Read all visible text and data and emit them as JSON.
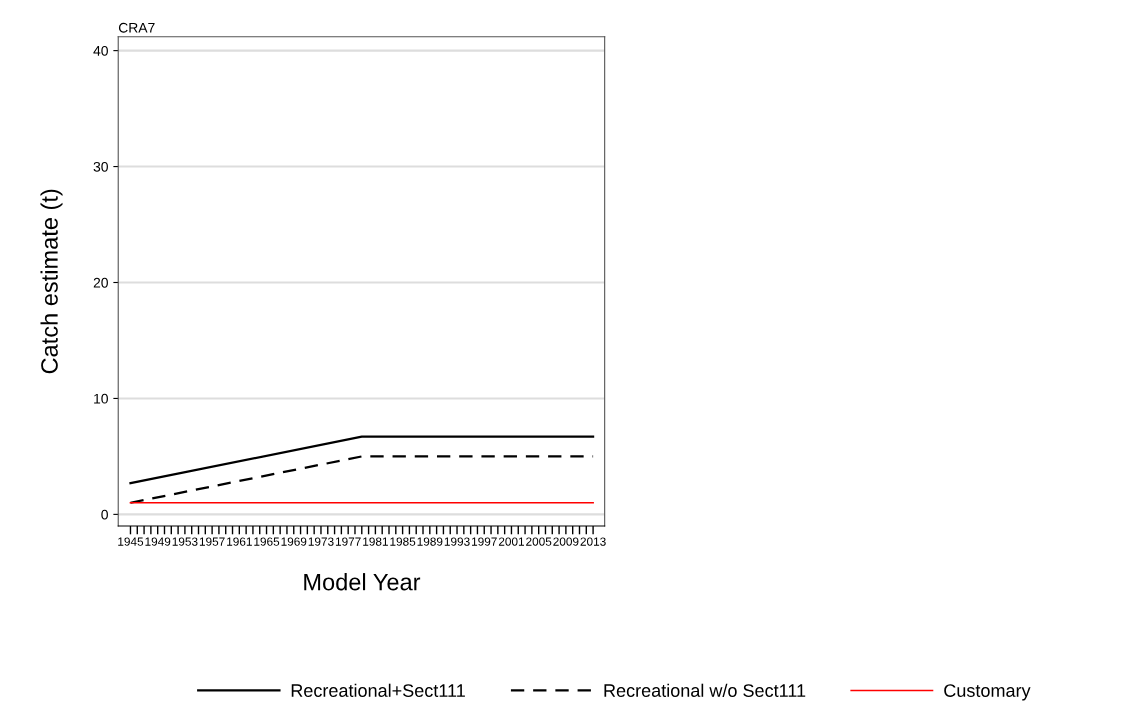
{
  "chart_data": {
    "type": "line",
    "title": "CRA7",
    "xlabel": "Model Year",
    "ylabel": "Catch estimate (t)",
    "series": [
      {
        "name": "Recreational+Sect111",
        "color": "#000000",
        "line_style": "solid",
        "x": [
          1945,
          1979,
          2013
        ],
        "values": [
          2.7,
          6.7,
          6.7
        ]
      },
      {
        "name": "Recreational w/o Sect111",
        "color": "#000000",
        "line_style": "dashed",
        "x": [
          1945,
          1979,
          2013
        ],
        "values": [
          1.0,
          5.0,
          5.0
        ]
      },
      {
        "name": "Customary",
        "color": "#ff0000",
        "line_style": "solid",
        "x": [
          1945,
          2013
        ],
        "values": [
          1.0,
          1.0
        ]
      }
    ],
    "xlim": [
      1943.2,
      2014.7
    ],
    "ylim": [
      -1,
      41.2
    ],
    "yticks": [
      0,
      10,
      20,
      30,
      40
    ],
    "xticks": [
      1945,
      {
        "value": 1946,
        "label": null
      },
      {
        "value": 1947,
        "label": null
      },
      {
        "value": 1948,
        "label": null
      },
      1949,
      {
        "value": 1950,
        "label": null
      },
      {
        "value": 1951,
        "label": null
      },
      {
        "value": 1952,
        "label": null
      },
      1953,
      {
        "value": 1954,
        "label": null
      },
      {
        "value": 1955,
        "label": null
      },
      {
        "value": 1956,
        "label": null
      },
      1957,
      {
        "value": 1958,
        "label": null
      },
      {
        "value": 1959,
        "label": null
      },
      {
        "value": 1960,
        "label": null
      },
      1961,
      {
        "value": 1962,
        "label": null
      },
      {
        "value": 1963,
        "label": null
      },
      {
        "value": 1964,
        "label": null
      },
      1965,
      {
        "value": 1966,
        "label": null
      },
      {
        "value": 1967,
        "label": null
      },
      {
        "value": 1968,
        "label": null
      },
      1969,
      {
        "value": 1970,
        "label": null
      },
      {
        "value": 1971,
        "label": null
      },
      {
        "value": 1972,
        "label": null
      },
      1973,
      {
        "value": 1974,
        "label": null
      },
      {
        "value": 1975,
        "label": null
      },
      {
        "value": 1976,
        "label": null
      },
      1977,
      {
        "value": 1978,
        "label": null
      },
      {
        "value": 1979,
        "label": null
      },
      {
        "value": 1980,
        "label": null
      },
      1981,
      {
        "value": 1982,
        "label": null
      },
      {
        "value": 1983,
        "label": null
      },
      {
        "value": 1984,
        "label": null
      },
      1985,
      {
        "value": 1986,
        "label": null
      },
      {
        "value": 1987,
        "label": null
      },
      {
        "value": 1988,
        "label": null
      },
      1989,
      {
        "value": 1990,
        "label": null
      },
      {
        "value": 1991,
        "label": null
      },
      {
        "value": 1992,
        "label": null
      },
      1993,
      {
        "value": 1994,
        "label": null
      },
      {
        "value": 1995,
        "label": null
      },
      {
        "value": 1996,
        "label": null
      },
      1997,
      {
        "value": 1998,
        "label": null
      },
      {
        "value": 1999,
        "label": null
      },
      {
        "value": 2000,
        "label": null
      },
      2001,
      {
        "value": 2002,
        "label": null
      },
      {
        "value": 2003,
        "label": null
      },
      {
        "value": 2004,
        "label": null
      },
      2005,
      {
        "value": 2006,
        "label": null
      },
      {
        "value": 2007,
        "label": null
      },
      {
        "value": 2008,
        "label": null
      },
      2009,
      {
        "value": 2010,
        "label": null
      },
      {
        "value": 2011,
        "label": null
      },
      {
        "value": 2012,
        "label": null
      },
      2013
    ],
    "grid": "y",
    "legend": "bottom",
    "marker": "none"
  }
}
